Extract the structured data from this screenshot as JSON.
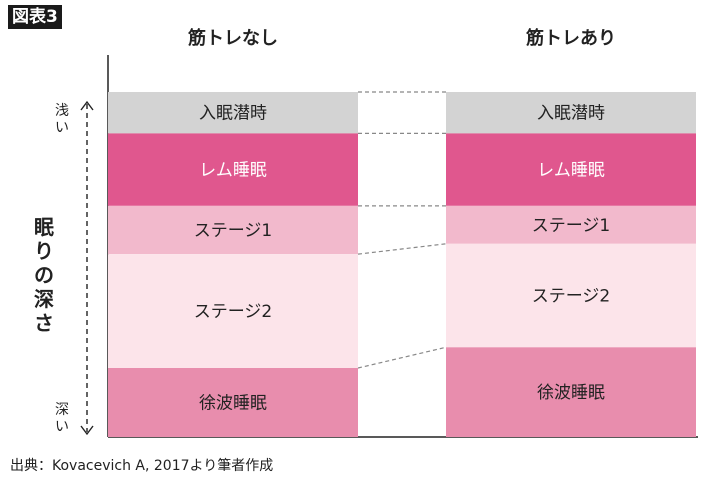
{
  "figure_label": "図表3",
  "source": "出典：Kovacevich A, 2017より筆者作成",
  "chart_data": {
    "type": "bar",
    "title": "",
    "columns": [
      "筋トレなし",
      "筋トレあり"
    ],
    "ylabel": "眠りの深さ",
    "y_top_label": "浅い",
    "y_bottom_label": "深い",
    "segments": [
      {
        "label": "入眠潜時",
        "color": "#d3d3d3",
        "text_color": "#222222",
        "shares": [
          0.12,
          0.12
        ]
      },
      {
        "label": "レム睡眠",
        "color": "#e0578e",
        "text_color": "#ffffff",
        "shares": [
          0.21,
          0.21
        ]
      },
      {
        "label": "ステージ1",
        "color": "#f2b9cc",
        "text_color": "#222222",
        "shares": [
          0.14,
          0.11
        ]
      },
      {
        "label": "ステージ2",
        "color": "#fce4ea",
        "text_color": "#222222",
        "shares": [
          0.33,
          0.3
        ]
      },
      {
        "label": "徐波睡眠",
        "color": "#e88dad",
        "text_color": "#222222",
        "shares": [
          0.2,
          0.26
        ]
      }
    ]
  }
}
